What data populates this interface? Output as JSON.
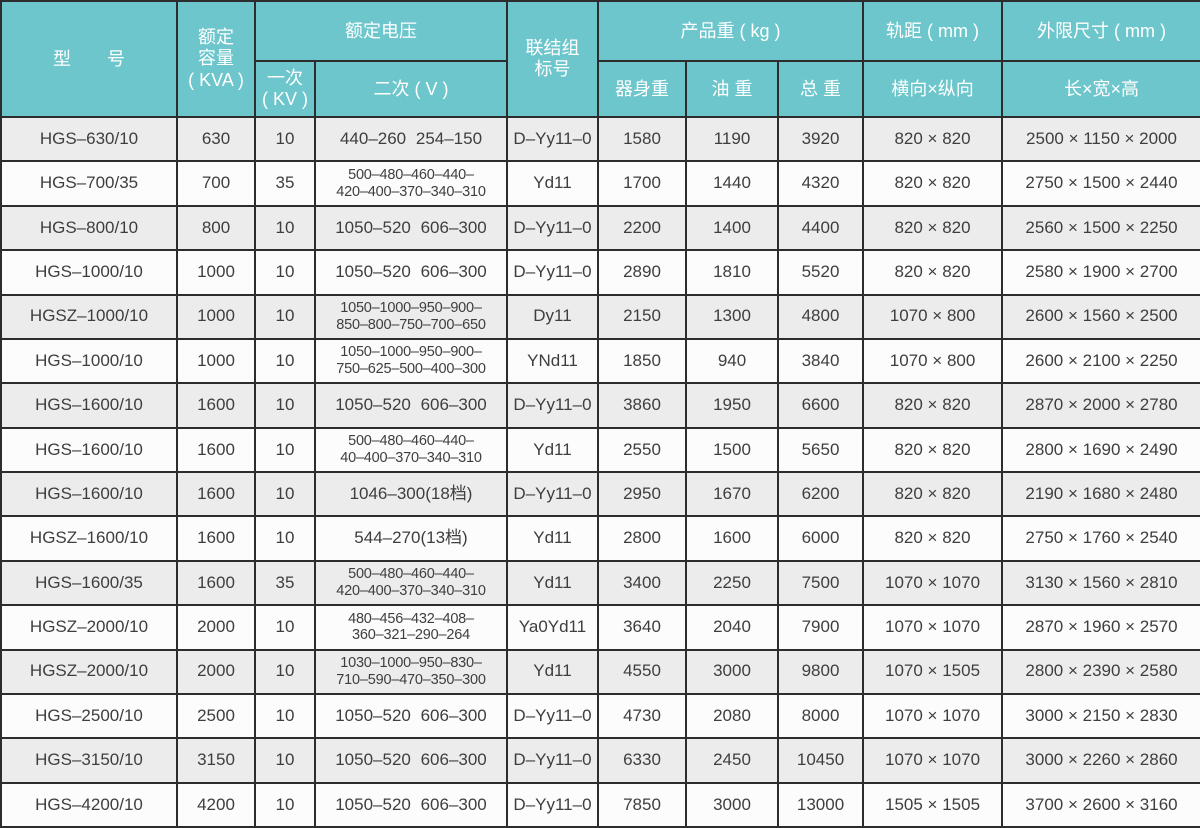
{
  "table": {
    "header": {
      "model": "型　　号",
      "capacity_lines": [
        "额定",
        "容量",
        "( KVA )"
      ],
      "voltage_group": "额定电压",
      "primary_lines": [
        "一次",
        "( KV )"
      ],
      "secondary": "二次 ( V )",
      "connection_lines": [
        "联结组",
        "标号"
      ],
      "weight_group": "产品重 ( kg )",
      "body_weight": "器身重",
      "oil_weight": "油 重",
      "total_weight": "总 重",
      "gauge_group": "轨距 ( mm )",
      "gauge_sub": "横向×纵向",
      "dims_group": "外限尺寸 ( mm )",
      "dims_sub": "长×宽×高"
    },
    "rows": [
      {
        "model": "HGS–630/10",
        "capacity": "630",
        "primary": "10",
        "secondary": [
          "440–260 254–150"
        ],
        "connection": "D–Yy11–0",
        "body": "1580",
        "oil": "1190",
        "total": "3920",
        "gauge": "820 × 820",
        "dims": "2500 × 1150 × 2000"
      },
      {
        "model": "HGS–700/35",
        "capacity": "700",
        "primary": "35",
        "secondary": [
          "500–480–460–440–",
          "420–400–370–340–310"
        ],
        "connection": "Yd11",
        "body": "1700",
        "oil": "1440",
        "total": "4320",
        "gauge": "820 × 820",
        "dims": "2750 × 1500 × 2440"
      },
      {
        "model": "HGS–800/10",
        "capacity": "800",
        "primary": "10",
        "secondary": [
          "1050–520 606–300"
        ],
        "connection": "D–Yy11–0",
        "body": "2200",
        "oil": "1400",
        "total": "4400",
        "gauge": "820 × 820",
        "dims": "2560 × 1500 × 2250"
      },
      {
        "model": "HGS–1000/10",
        "capacity": "1000",
        "primary": "10",
        "secondary": [
          "1050–520 606–300"
        ],
        "connection": "D–Yy11–0",
        "body": "2890",
        "oil": "1810",
        "total": "5520",
        "gauge": "820 × 820",
        "dims": "2580 × 1900 × 2700"
      },
      {
        "model": "HGSZ–1000/10",
        "capacity": "1000",
        "primary": "10",
        "secondary": [
          "1050–1000–950–900–",
          "850–800–750–700–650"
        ],
        "connection": "Dy11",
        "body": "2150",
        "oil": "1300",
        "total": "4800",
        "gauge": "1070 × 800",
        "dims": "2600 × 1560 × 2500"
      },
      {
        "model": "HGS–1000/10",
        "capacity": "1000",
        "primary": "10",
        "secondary": [
          "1050–1000–950–900–",
          "750–625–500–400–300"
        ],
        "connection": "YNd11",
        "body": "1850",
        "oil": "940",
        "total": "3840",
        "gauge": "1070 × 800",
        "dims": "2600 × 2100 × 2250"
      },
      {
        "model": "HGS–1600/10",
        "capacity": "1600",
        "primary": "10",
        "secondary": [
          "1050–520 606–300"
        ],
        "connection": "D–Yy11–0",
        "body": "3860",
        "oil": "1950",
        "total": "6600",
        "gauge": "820 × 820",
        "dims": "2870 × 2000 × 2780"
      },
      {
        "model": "HGS–1600/10",
        "capacity": "1600",
        "primary": "10",
        "secondary": [
          "500–480–460–440–",
          "40–400–370–340–310"
        ],
        "connection": "Yd11",
        "body": "2550",
        "oil": "1500",
        "total": "5650",
        "gauge": "820 × 820",
        "dims": "2800 × 1690 × 2490"
      },
      {
        "model": "HGS–1600/10",
        "capacity": "1600",
        "primary": "10",
        "secondary": [
          "1046–300(18档)"
        ],
        "connection": "D–Yy11–0",
        "body": "2950",
        "oil": "1670",
        "total": "6200",
        "gauge": "820 × 820",
        "dims": "2190 × 1680 × 2480"
      },
      {
        "model": "HGSZ–1600/10",
        "capacity": "1600",
        "primary": "10",
        "secondary": [
          "544–270(13档)"
        ],
        "connection": "Yd11",
        "body": "2800",
        "oil": "1600",
        "total": "6000",
        "gauge": "820 × 820",
        "dims": "2750 × 1760 × 2540"
      },
      {
        "model": "HGS–1600/35",
        "capacity": "1600",
        "primary": "35",
        "secondary": [
          "500–480–460–440–",
          "420–400–370–340–310"
        ],
        "connection": "Yd11",
        "body": "3400",
        "oil": "2250",
        "total": "7500",
        "gauge": "1070 × 1070",
        "dims": "3130 × 1560 × 2810"
      },
      {
        "model": "HGSZ–2000/10",
        "capacity": "2000",
        "primary": "10",
        "secondary": [
          "480–456–432–408–",
          "360–321–290–264"
        ],
        "connection": "Ya0Yd11",
        "body": "3640",
        "oil": "2040",
        "total": "7900",
        "gauge": "1070 × 1070",
        "dims": "2870 × 1960 × 2570"
      },
      {
        "model": "HGSZ–2000/10",
        "capacity": "2000",
        "primary": "10",
        "secondary": [
          "1030–1000–950–830–",
          "710–590–470–350–300"
        ],
        "connection": "Yd11",
        "body": "4550",
        "oil": "3000",
        "total": "9800",
        "gauge": "1070 × 1505",
        "dims": "2800 × 2390 × 2580"
      },
      {
        "model": "HGS–2500/10",
        "capacity": "2500",
        "primary": "10",
        "secondary": [
          "1050–520 606–300"
        ],
        "connection": "D–Yy11–0",
        "body": "4730",
        "oil": "2080",
        "total": "8000",
        "gauge": "1070 × 1070",
        "dims": "3000 × 2150 × 2830"
      },
      {
        "model": "HGS–3150/10",
        "capacity": "3150",
        "primary": "10",
        "secondary": [
          "1050–520 606–300"
        ],
        "connection": "D–Yy11–0",
        "body": "6330",
        "oil": "2450",
        "total": "10450",
        "gauge": "1070 × 1070",
        "dims": "3000 × 2260 × 2860"
      },
      {
        "model": "HGS–4200/10",
        "capacity": "4200",
        "primary": "10",
        "secondary": [
          "1050–520 606–300"
        ],
        "connection": "D–Yy11–0",
        "body": "7850",
        "oil": "3000",
        "total": "13000",
        "gauge": "1505 × 1505",
        "dims": "3700 × 2600 × 3160"
      }
    ]
  },
  "colors": {
    "header_bg": "#6cc6cb",
    "header_text": "#ffffff",
    "row_stripe": "#ececec",
    "row_base": "#fcfcfc",
    "border": "#2d2d2d",
    "text": "#3e3e3e"
  }
}
